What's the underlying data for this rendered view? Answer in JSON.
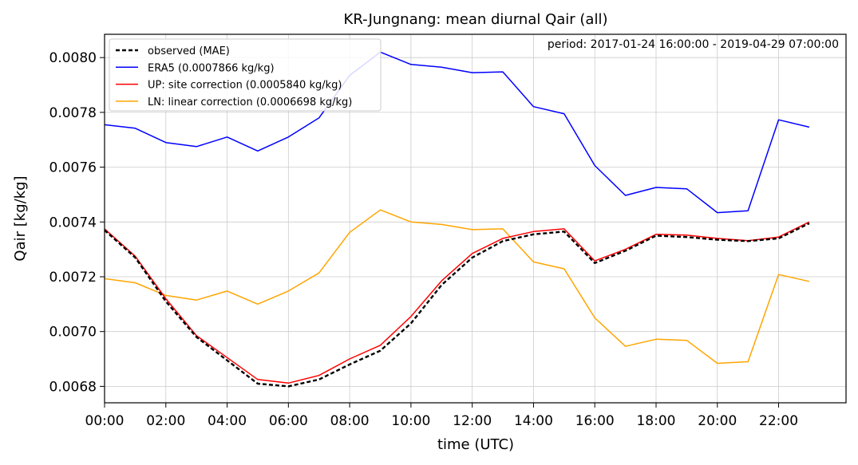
{
  "chart_data": {
    "type": "line",
    "title": "KR-Jungnang: mean diurnal Qair (all)",
    "annotation": "period: 2017-01-24 16:00:00 - 2019-04-29 07:00:00",
    "xlabel": "time (UTC)",
    "ylabel": "Qair [kg/kg]",
    "x": [
      "00:00",
      "01:00",
      "02:00",
      "03:00",
      "04:00",
      "05:00",
      "06:00",
      "07:00",
      "08:00",
      "09:00",
      "10:00",
      "11:00",
      "12:00",
      "13:00",
      "14:00",
      "15:00",
      "16:00",
      "17:00",
      "18:00",
      "19:00",
      "20:00",
      "21:00",
      "22:00",
      "23:00"
    ],
    "x_ticks": [
      "00:00",
      "02:00",
      "04:00",
      "06:00",
      "08:00",
      "10:00",
      "12:00",
      "14:00",
      "16:00",
      "18:00",
      "20:00",
      "22:00"
    ],
    "y_ticks": [
      "0.0068",
      "0.0070",
      "0.0072",
      "0.0074",
      "0.0076",
      "0.0078",
      "0.0080"
    ],
    "xlim": [
      0,
      24.2
    ],
    "ylim": [
      0.00674,
      0.008085
    ],
    "grid": true,
    "legend_position": "top-left",
    "series": [
      {
        "name": "observed (MAE)",
        "color": "#000000",
        "style": "dashed",
        "values": [
          0.00737,
          0.00727,
          0.00711,
          0.00698,
          0.006895,
          0.00681,
          0.0068,
          0.006825,
          0.00688,
          0.00693,
          0.00703,
          0.00717,
          0.00727,
          0.00733,
          0.007355,
          0.007365,
          0.00725,
          0.007295,
          0.00735,
          0.007345,
          0.007335,
          0.00733,
          0.00734,
          0.007395
        ]
      },
      {
        "name": "ERA5 (0.0007866 kg/kg)",
        "color": "#0000ff",
        "style": "solid",
        "values": [
          0.007755,
          0.007742,
          0.00769,
          0.007675,
          0.00771,
          0.007659,
          0.00771,
          0.00778,
          0.007935,
          0.00802,
          0.007975,
          0.007965,
          0.007945,
          0.007948,
          0.007821,
          0.007795,
          0.007606,
          0.007497,
          0.007526,
          0.007521,
          0.007434,
          0.007441,
          0.007773,
          0.007746
        ]
      },
      {
        "name": "UP: site correction (0.0005840 kg/kg)",
        "color": "#ff0000",
        "style": "solid",
        "values": [
          0.007375,
          0.007275,
          0.00712,
          0.006985,
          0.006905,
          0.006825,
          0.006812,
          0.00684,
          0.0069,
          0.00695,
          0.007055,
          0.007185,
          0.007285,
          0.00734,
          0.007365,
          0.007375,
          0.007258,
          0.0073,
          0.007355,
          0.007352,
          0.00734,
          0.007332,
          0.007345,
          0.0074
        ]
      },
      {
        "name": "LN: linear correction (0.0006698 kg/kg)",
        "color": "#ffa500",
        "style": "solid",
        "values": [
          0.007193,
          0.007178,
          0.007132,
          0.007115,
          0.007148,
          0.0071,
          0.007148,
          0.007214,
          0.007362,
          0.007444,
          0.0074,
          0.007391,
          0.007372,
          0.007375,
          0.007254,
          0.007229,
          0.00705,
          0.006946,
          0.006972,
          0.006968,
          0.006884,
          0.00689,
          0.007208,
          0.007183
        ]
      }
    ]
  }
}
